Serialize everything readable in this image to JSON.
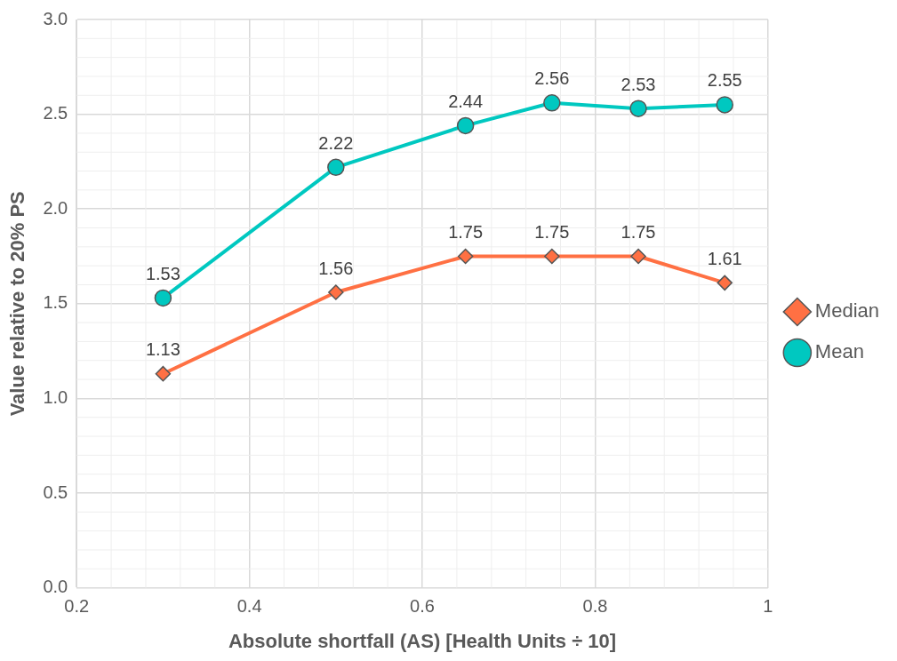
{
  "chart_data": {
    "type": "line",
    "xlabel": "Absolute shortfall (AS) [Health Units ÷ 10]",
    "ylabel": "Value relative to 20% PS",
    "x": [
      0.3,
      0.5,
      0.65,
      0.75,
      0.85,
      0.95
    ],
    "series": [
      {
        "name": "Median",
        "color": "#ff7043",
        "marker": "diamond",
        "values": [
          1.13,
          1.56,
          1.75,
          1.75,
          1.75,
          1.61
        ]
      },
      {
        "name": "Mean",
        "color": "#00c8c0",
        "marker": "circle",
        "values": [
          1.53,
          2.22,
          2.44,
          2.56,
          2.53,
          2.55
        ]
      }
    ],
    "xlim": [
      0.2,
      1
    ],
    "xticks": [
      0.2,
      0.4,
      0.6,
      0.8,
      1
    ],
    "ylim": [
      0,
      3
    ],
    "yticks": [
      {
        "value": 0,
        "label": "0.0"
      },
      0.5,
      {
        "value": 1,
        "label": "1.0"
      },
      1.5,
      {
        "value": 2,
        "label": "2.0"
      },
      2.5,
      {
        "value": 3,
        "label": "3.0"
      }
    ],
    "grid": true,
    "legend": "right",
    "data_labels": true,
    "line_style": "solid"
  }
}
